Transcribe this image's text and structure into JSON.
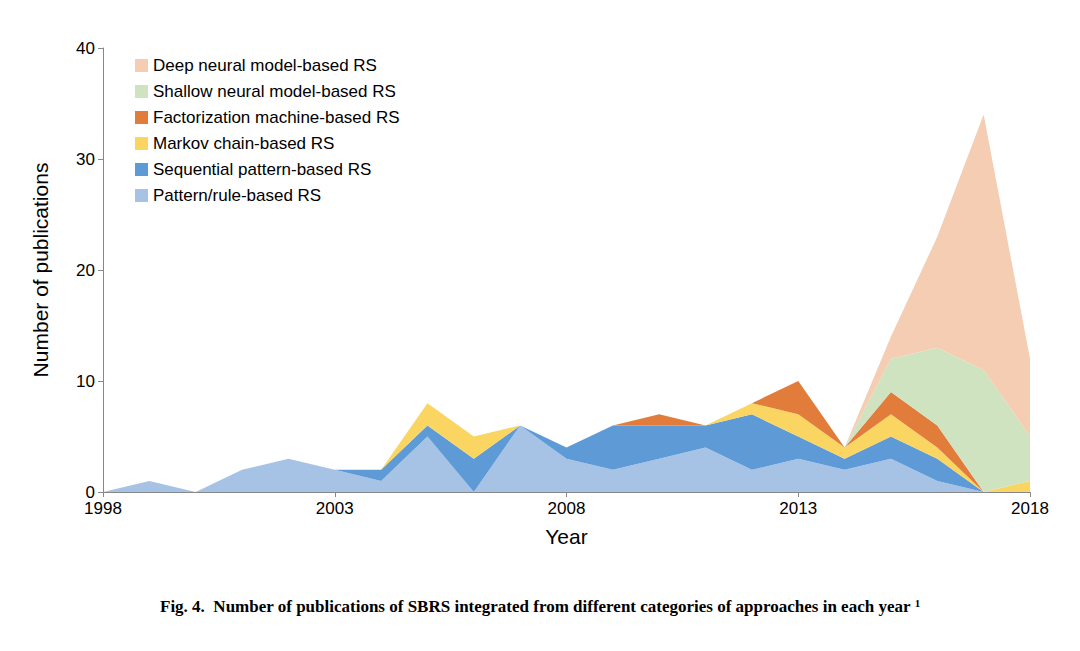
{
  "chart_data": {
    "type": "area",
    "title": "Fig. 4.  Number of publications of SBRS integrated from different categories of approaches in each year",
    "title_note": "1",
    "x_label": "Year",
    "y_label": "Number of publications",
    "categories": [
      "1998",
      null,
      null,
      null,
      null,
      "2003",
      null,
      null,
      null,
      null,
      "2008",
      null,
      null,
      null,
      null,
      "2013",
      null,
      null,
      null,
      null,
      "2018"
    ],
    "stacked": true,
    "grid": false,
    "legend": "top-left",
    "ylim": [
      0,
      40
    ],
    "yticks": [
      0,
      10,
      20,
      30,
      40
    ],
    "series": [
      {
        "name": "Deep neural model-based RS",
        "color": "#f4cdb3",
        "values": [
          0,
          0,
          0,
          0,
          0,
          0,
          0,
          0,
          0,
          0,
          0,
          0,
          0,
          0,
          0,
          0,
          0,
          2,
          10,
          23,
          7
        ]
      },
      {
        "name": "Shallow neural model-based RS",
        "color": "#cfe3c0",
        "values": [
          0,
          0,
          0,
          0,
          0,
          0,
          0,
          0,
          0,
          0,
          0,
          0,
          0,
          0,
          0,
          0,
          0,
          3,
          7,
          11,
          4
        ]
      },
      {
        "name": "Factorization machine-based RS",
        "color": "#e27c3b",
        "values": [
          0,
          0,
          0,
          0,
          0,
          0,
          0,
          0,
          0,
          0,
          0,
          0,
          1,
          0,
          0,
          3,
          0,
          2,
          2,
          0,
          0
        ]
      },
      {
        "name": "Markov chain-based RS",
        "color": "#fad562",
        "values": [
          0,
          0,
          0,
          0,
          0,
          0,
          0,
          2,
          2,
          0,
          0,
          0,
          0,
          0,
          1,
          2,
          1,
          2,
          1,
          0,
          1
        ]
      },
      {
        "name": "Sequential pattern-based RS",
        "color": "#5e9bd6",
        "values": [
          0,
          0,
          0,
          0,
          0,
          0,
          1,
          1,
          3,
          0,
          1,
          4,
          3,
          2,
          5,
          2,
          1,
          2,
          2,
          0,
          0
        ]
      },
      {
        "name": "Pattern/rule-based RS",
        "color": "#a6c3e6",
        "values": [
          0,
          1,
          0,
          2,
          3,
          2,
          1,
          5,
          0,
          6,
          3,
          2,
          3,
          4,
          2,
          3,
          2,
          3,
          1,
          0,
          0
        ]
      }
    ]
  }
}
